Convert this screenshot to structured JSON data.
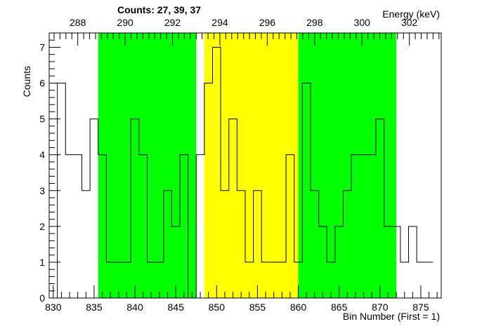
{
  "chart_data": {
    "type": "bar",
    "style": "step-histogram",
    "title": "",
    "counts_label": "Counts:   27,   39,   37",
    "xlabel": "Bin Number (First = 1)",
    "ylabel": "Counts",
    "x2label": "Energy (keV)",
    "xlim": [
      829.5,
      877.5
    ],
    "ylim": [
      0,
      7.4
    ],
    "x_ticks": [
      830,
      835,
      840,
      845,
      850,
      855,
      860,
      865,
      870,
      875
    ],
    "y_ticks": [
      0,
      1,
      2,
      3,
      4,
      5,
      6,
      7
    ],
    "energy_ticks": [
      {
        "label": "288",
        "bin": 833.0
      },
      {
        "label": "290",
        "bin": 838.8
      },
      {
        "label": "292",
        "bin": 844.6
      },
      {
        "label": "294",
        "bin": 850.4
      },
      {
        "label": "296",
        "bin": 856.2
      },
      {
        "label": "298",
        "bin": 862.0
      },
      {
        "label": "300",
        "bin": 867.8
      },
      {
        "label": "302",
        "bin": 873.6
      }
    ],
    "regions": [
      {
        "name": "left background",
        "start": 835.5,
        "end": 847.5,
        "color": "#00ff00",
        "count": 27
      },
      {
        "name": "peak",
        "start": 848.5,
        "end": 860.0,
        "color": "#ffff00",
        "count": 39
      },
      {
        "name": "right background",
        "start": 860.0,
        "end": 872.0,
        "color": "#00ff00",
        "count": 37
      }
    ],
    "bins_start": 830,
    "bin_width": 1,
    "values": [
      0,
      6,
      4,
      4,
      3,
      5,
      4,
      1,
      1,
      1,
      5,
      4,
      1,
      1,
      3,
      2,
      4,
      0,
      4,
      6,
      7,
      3,
      5,
      3,
      1,
      3,
      1,
      1,
      1,
      4,
      1,
      6,
      3,
      2,
      1,
      2,
      3,
      4,
      4,
      4,
      5,
      2,
      2,
      1,
      2,
      1,
      1
    ]
  },
  "colors": {
    "background_region": "#00ff00",
    "peak_region": "#ffff00",
    "line": "#000000"
  }
}
